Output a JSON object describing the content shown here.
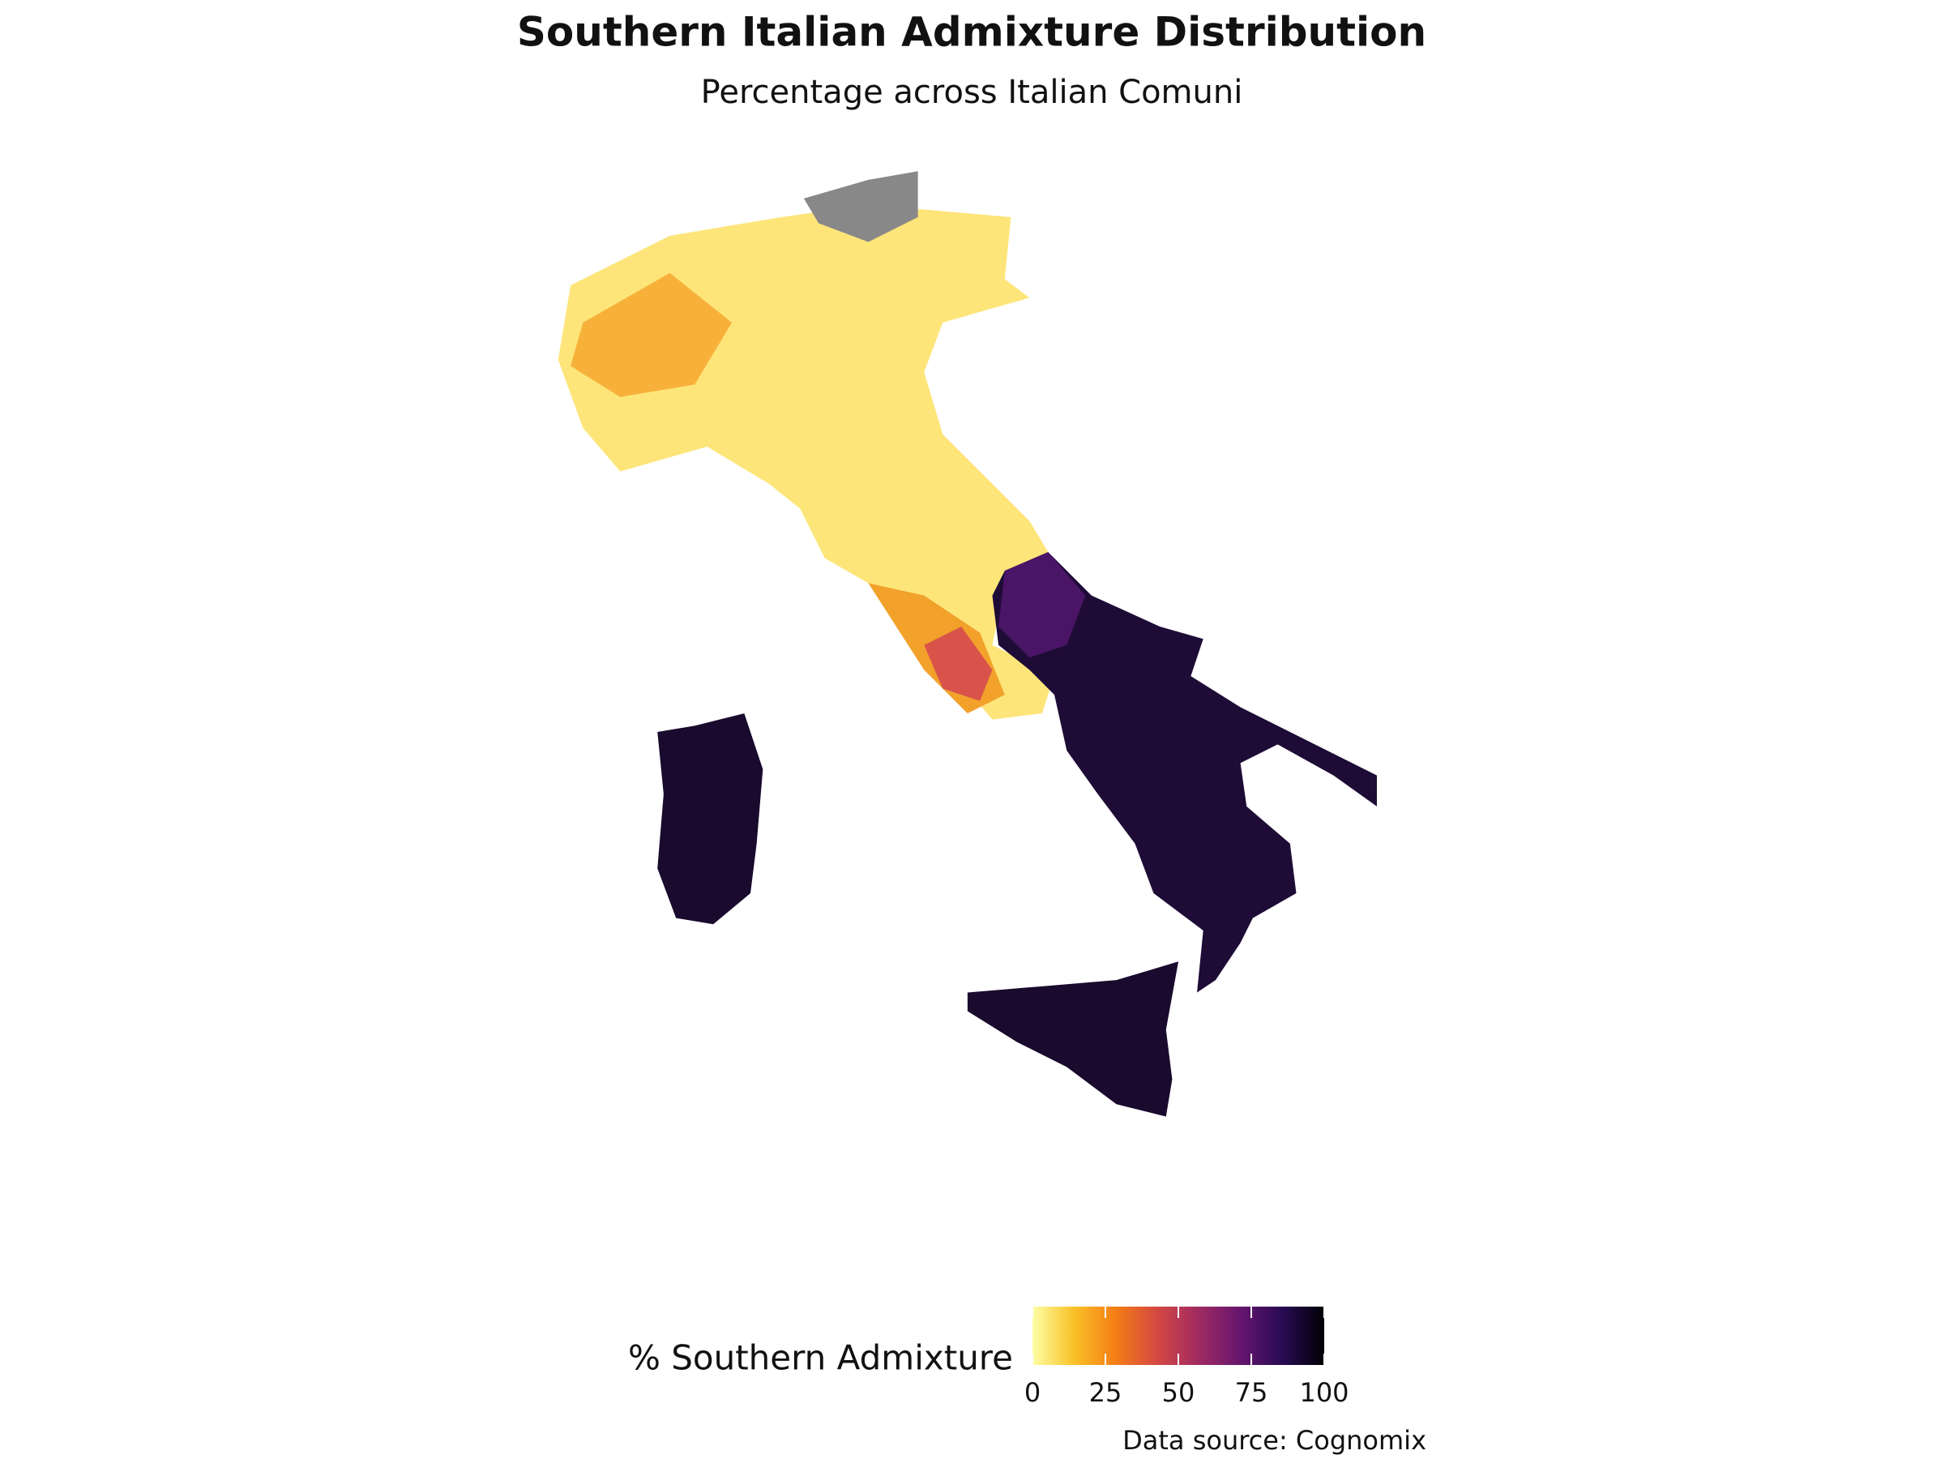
{
  "title": "Southern Italian Admixture Distribution",
  "subtitle": "Percentage across Italian Comuni",
  "legend": {
    "title": "% Southern Admixture",
    "range": [
      0,
      100
    ],
    "ticks": [
      0,
      25,
      50,
      75,
      100
    ],
    "colors": [
      "#fcffa4",
      "#fac127",
      "#f57d15",
      "#d44842",
      "#9f2a63",
      "#65156e",
      "#280b53",
      "#000004"
    ]
  },
  "caption": "Data source: Cognomix"
}
